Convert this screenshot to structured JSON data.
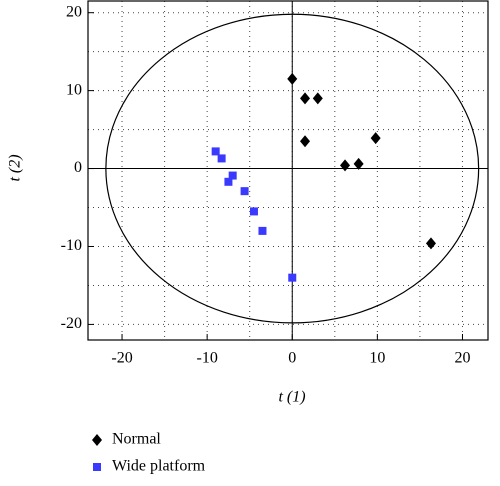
{
  "chart_data": {
    "type": "scatter",
    "x_label": "t (1)",
    "y_label": "t (2)",
    "xlim": [
      -24,
      23
    ],
    "ylim": [
      -22,
      21.5
    ],
    "xticks": [
      -20,
      -10,
      0,
      10,
      20
    ],
    "yticks": [
      -20,
      -10,
      0,
      10,
      20
    ],
    "grid": true,
    "ellipse": {
      "rx": 21.9,
      "ry": 19.8
    },
    "series": [
      {
        "name": "Normal",
        "color": "#000000",
        "marker": "diamond",
        "x": [
          0,
          1.5,
          3,
          1.5,
          6.2,
          7.8,
          9.8,
          16.3
        ],
        "values": [
          11.5,
          9,
          9,
          3.5,
          0.4,
          0.6,
          3.9,
          -9.6
        ]
      },
      {
        "name": "Wide platform",
        "color": "#3a3aff",
        "marker": "square",
        "x": [
          -9,
          -8.3,
          -7.5,
          -7,
          -5.6,
          -4.5,
          -3.5,
          0
        ],
        "values": [
          2.2,
          1.3,
          -1.7,
          -0.9,
          -2.9,
          -5.5,
          -8,
          -14
        ]
      }
    ]
  }
}
